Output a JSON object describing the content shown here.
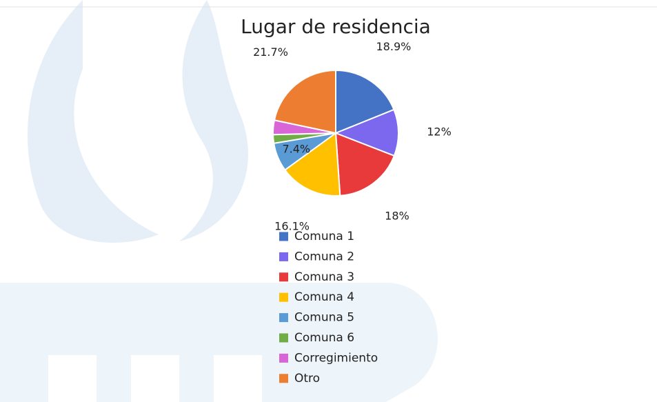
{
  "chart_data": {
    "type": "pie",
    "title": "Lugar de residencia",
    "categories": [
      "Comuna 1",
      "Comuna 2",
      "Comuna 3",
      "Comuna 4",
      "Comuna 5",
      "Comuna 6",
      "Corregimiento",
      "Otro"
    ],
    "values": [
      18.9,
      12,
      18,
      16.1,
      7.4,
      2.2,
      3.7,
      21.7
    ],
    "value_labels": [
      "18.9%",
      "12%",
      "18%",
      "16.1%",
      "7.4%",
      null,
      null,
      "21.7%"
    ],
    "colors": [
      "#4472c4",
      "#7b68ee",
      "#e83a3a",
      "#ffc000",
      "#5b9bd5",
      "#70ad47",
      "#d966d6",
      "#ed7d31"
    ]
  }
}
